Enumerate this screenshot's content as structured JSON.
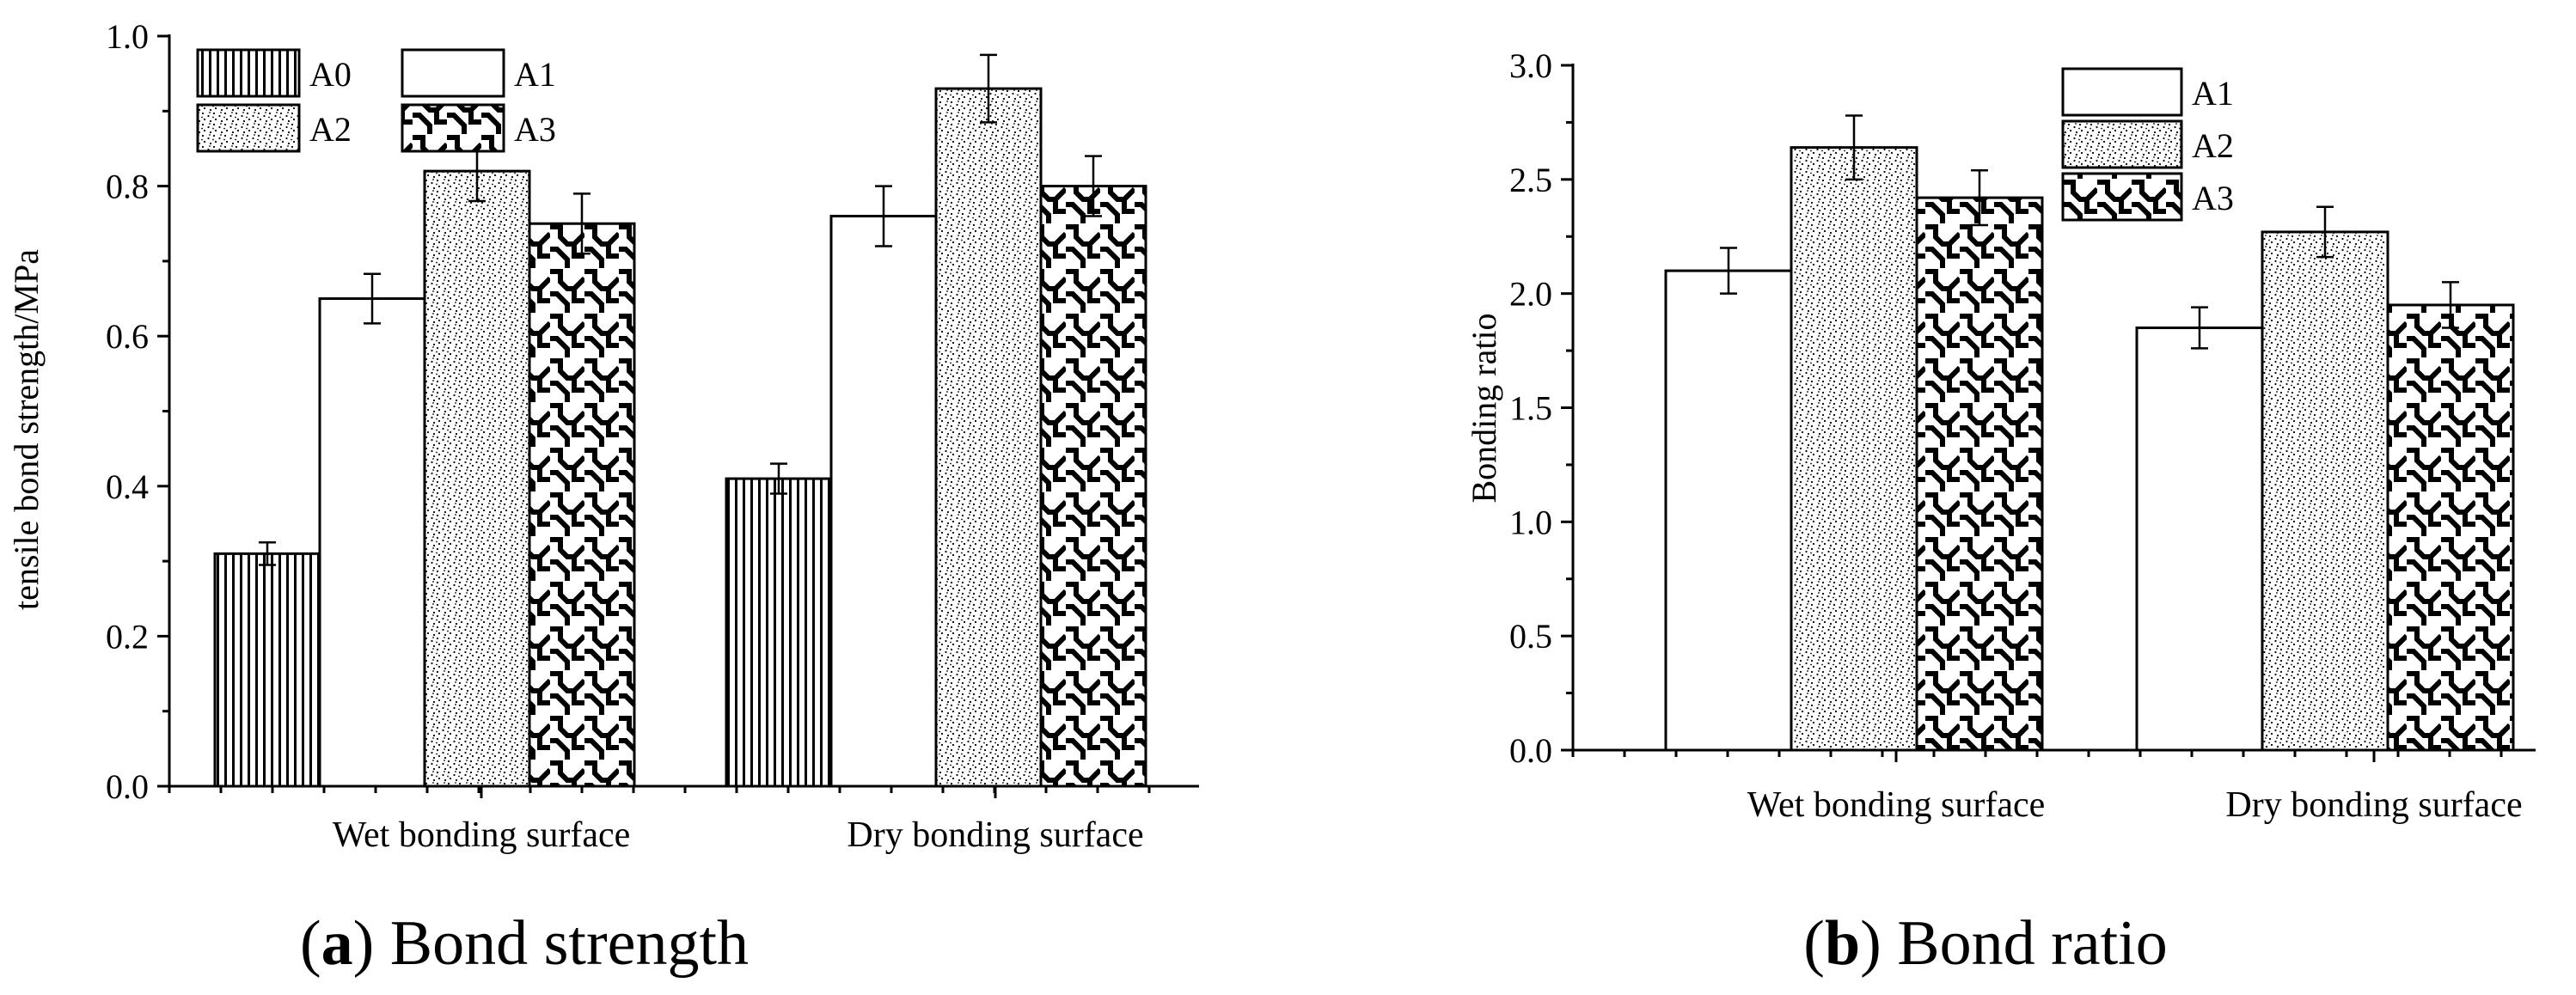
{
  "chart_data": [
    {
      "type": "bar",
      "title": "",
      "caption_letter": "a",
      "caption_text": "Bond strength",
      "xlabel": "",
      "ylabel": "tensile bond strength/MPa",
      "ylim": [
        0,
        1.0
      ],
      "ytick_labels": [
        "0.0",
        "0.2",
        "0.4",
        "0.6",
        "0.8",
        "1.0"
      ],
      "categories": [
        "Wet bonding surface",
        "Dry bonding surface"
      ],
      "legend_position": "top-left",
      "series": [
        {
          "name": "A0",
          "pattern": "vlines",
          "values": [
            0.31,
            0.41
          ],
          "errors": [
            0.015,
            0.02
          ]
        },
        {
          "name": "A1",
          "pattern": "white",
          "values": [
            0.65,
            0.76
          ],
          "errors": [
            0.033,
            0.04
          ]
        },
        {
          "name": "A2",
          "pattern": "dots",
          "values": [
            0.82,
            0.93
          ],
          "errors": [
            0.04,
            0.045
          ]
        },
        {
          "name": "A3",
          "pattern": "weave",
          "values": [
            0.75,
            0.8
          ],
          "errors": [
            0.04,
            0.04
          ]
        }
      ]
    },
    {
      "type": "bar",
      "title": "",
      "caption_letter": "b",
      "caption_text": "Bond ratio",
      "xlabel": "",
      "ylabel": "Bonding ratio",
      "ylim": [
        0,
        3.0
      ],
      "ytick_labels": [
        "0.0",
        "0.5",
        "1.0",
        "1.5",
        "2.0",
        "2.5",
        "3.0"
      ],
      "categories": [
        "Wet bonding surface",
        "Dry bonding surface"
      ],
      "legend_position": "top-center",
      "series": [
        {
          "name": "A1",
          "pattern": "white",
          "values": [
            2.1,
            1.85
          ],
          "errors": [
            0.1,
            0.09
          ]
        },
        {
          "name": "A2",
          "pattern": "dots",
          "values": [
            2.64,
            2.27
          ],
          "errors": [
            0.14,
            0.11
          ]
        },
        {
          "name": "A3",
          "pattern": "weave",
          "values": [
            2.42,
            1.95
          ],
          "errors": [
            0.12,
            0.1
          ]
        }
      ]
    }
  ]
}
